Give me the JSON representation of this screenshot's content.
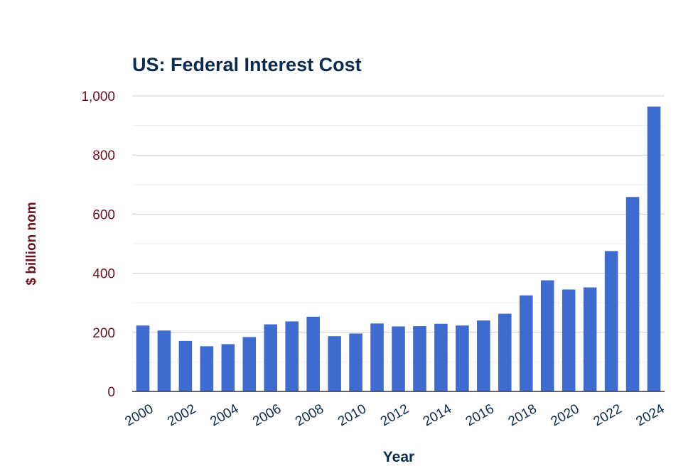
{
  "chart_data": {
    "type": "bar",
    "title": "US: Federal Interest Cost",
    "xlabel": "Year",
    "ylabel": "$ billion nom",
    "ylim": [
      0,
      1000
    ],
    "yticks": [
      "0",
      "200",
      "400",
      "600",
      "800",
      "1,000"
    ],
    "ytick_values": [
      0,
      200,
      400,
      600,
      800,
      1000
    ],
    "xtick_labels": [
      "2000",
      "2002",
      "2004",
      "2006",
      "2008",
      "2010",
      "2012",
      "2014",
      "2016",
      "2018",
      "2020",
      "2022",
      "2024"
    ],
    "categories": [
      "2000",
      "2001",
      "2002",
      "2003",
      "2004",
      "2005",
      "2006",
      "2007",
      "2008",
      "2009",
      "2010",
      "2011",
      "2012",
      "2013",
      "2014",
      "2015",
      "2016",
      "2017",
      "2018",
      "2019",
      "2020",
      "2021",
      "2022",
      "2023",
      "2024"
    ],
    "values": [
      223,
      206,
      171,
      153,
      160,
      184,
      227,
      237,
      253,
      187,
      196,
      230,
      220,
      221,
      229,
      223,
      240,
      263,
      325,
      376,
      345,
      352,
      475,
      658,
      964
    ],
    "grid": true,
    "colors": {
      "bar": "#3e6bd0",
      "title": "#0d2b4e",
      "ylabel": "#6b1020",
      "ytick": "#6b1020",
      "xtick": "#0d2b4e",
      "xlabel": "#0d2b4e",
      "grid_major": "#cccccc",
      "grid_minor": "#eeeeee",
      "axis": "#333333"
    }
  }
}
